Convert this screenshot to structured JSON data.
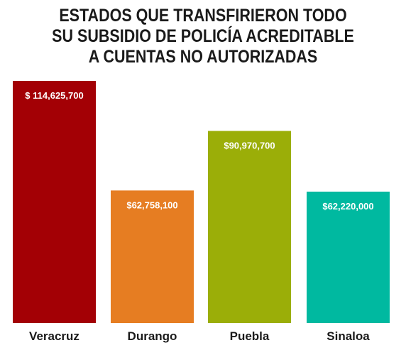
{
  "chart_data": {
    "type": "bar",
    "title_lines": [
      "ESTADOS QUE TRANSFIRIERON TODO",
      "SU SUBSIDIO DE POLICÍA ACREDITABLE",
      "A CUENTAS NO AUTORIZADAS"
    ],
    "categories": [
      "Veracruz",
      "Durango",
      "Puebla",
      "Sinaloa"
    ],
    "values": [
      114625700,
      62758100,
      90970700,
      62220000
    ],
    "data_labels": [
      "$ 114,625,700",
      "$62,758,100",
      "$90,970,700",
      "$62,220,000"
    ],
    "colors": [
      "#a30005",
      "#e67d22",
      "#9bae08",
      "#00b9a0"
    ],
    "ylim": [
      0,
      114625700
    ],
    "grid": false,
    "legend": "none"
  }
}
